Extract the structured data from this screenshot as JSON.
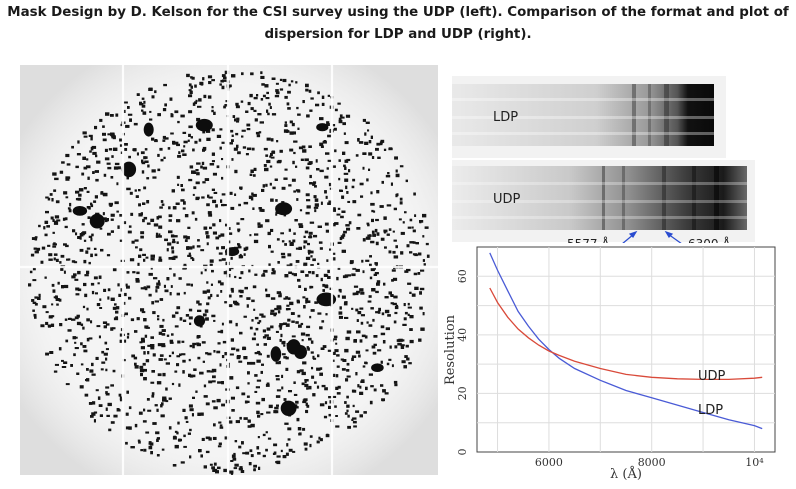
{
  "caption": {
    "line1": "Mask Design by D. Kelson for the CSI survey using the UDP (left).  Comparison of the format and plot of",
    "line2": "dispersion for LDP and UDP (right)."
  },
  "spectra": {
    "ldp_label": "LDP",
    "udp_label": "UDP",
    "marker_left": "5577 Å",
    "marker_right": "6300 Å"
  },
  "chart_data": {
    "type": "line",
    "title": "",
    "xlabel": "λ (Å)",
    "ylabel": "Resolution",
    "xlim": [
      4600,
      10400
    ],
    "ylim": [
      0,
      70
    ],
    "xticks": [
      "6000",
      "8000",
      "10⁴"
    ],
    "yticks": [
      "0",
      "20",
      "40",
      "60"
    ],
    "grid": true,
    "series": [
      {
        "name": "LDP",
        "color": "#4a5bd6",
        "x": [
          4850,
          5000,
          5200,
          5400,
          5600,
          5800,
          6000,
          6200,
          6500,
          7000,
          7500,
          8000,
          8500,
          9000,
          9500,
          10000,
          10150
        ],
        "y": [
          68,
          62,
          55,
          48,
          43,
          38.5,
          35,
          32,
          28.5,
          24.5,
          21,
          18.5,
          16,
          13.5,
          11,
          9,
          8
        ]
      },
      {
        "name": "UDP",
        "color": "#d94a3a",
        "x": [
          4850,
          5000,
          5200,
          5400,
          5600,
          5800,
          6000,
          6200,
          6500,
          7000,
          7500,
          8000,
          8500,
          9000,
          9500,
          10000,
          10150
        ],
        "y": [
          56,
          51,
          46,
          42,
          39,
          36.5,
          34.5,
          33,
          31,
          28.5,
          26.5,
          25.5,
          25,
          24.8,
          24.8,
          25.2,
          25.5
        ]
      }
    ]
  }
}
